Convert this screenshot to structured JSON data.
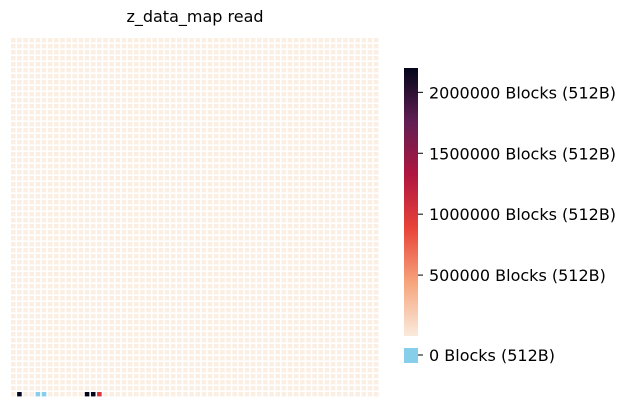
{
  "chart_data": {
    "type": "heatmap",
    "title": "z_data_map read",
    "xlabel": "",
    "ylabel": "",
    "grid": {
      "rows": 60,
      "cols": 60
    },
    "colormap": "rocket_r",
    "colors": {
      "empty": "#fbeee2",
      "zero": "#87ceeb",
      "cmap_stops": [
        "#faebdd",
        "#f6a47c",
        "#e8443a",
        "#b0163f",
        "#611f53",
        "#03051a"
      ]
    },
    "value_range": [
      0,
      2200000
    ],
    "colorbar": {
      "ticks": [
        0,
        500000,
        1000000,
        1500000,
        2000000
      ],
      "tick_labels": [
        "0 Blocks (512B)",
        "500000 Blocks (512B)",
        "1000000 Blocks (512B)",
        "1500000 Blocks (512B)",
        "2000000 Blocks (512B)"
      ],
      "zero_label": "0 Blocks (512B)"
    },
    "cells": [
      {
        "row": 59,
        "col": 1,
        "value": 2200000
      },
      {
        "row": 59,
        "col": 4,
        "value": 0
      },
      {
        "row": 59,
        "col": 5,
        "value": 0
      },
      {
        "row": 59,
        "col": 12,
        "value": 2200000
      },
      {
        "row": 59,
        "col": 13,
        "value": 2200000
      },
      {
        "row": 59,
        "col": 14,
        "value": 1000000
      }
    ]
  }
}
